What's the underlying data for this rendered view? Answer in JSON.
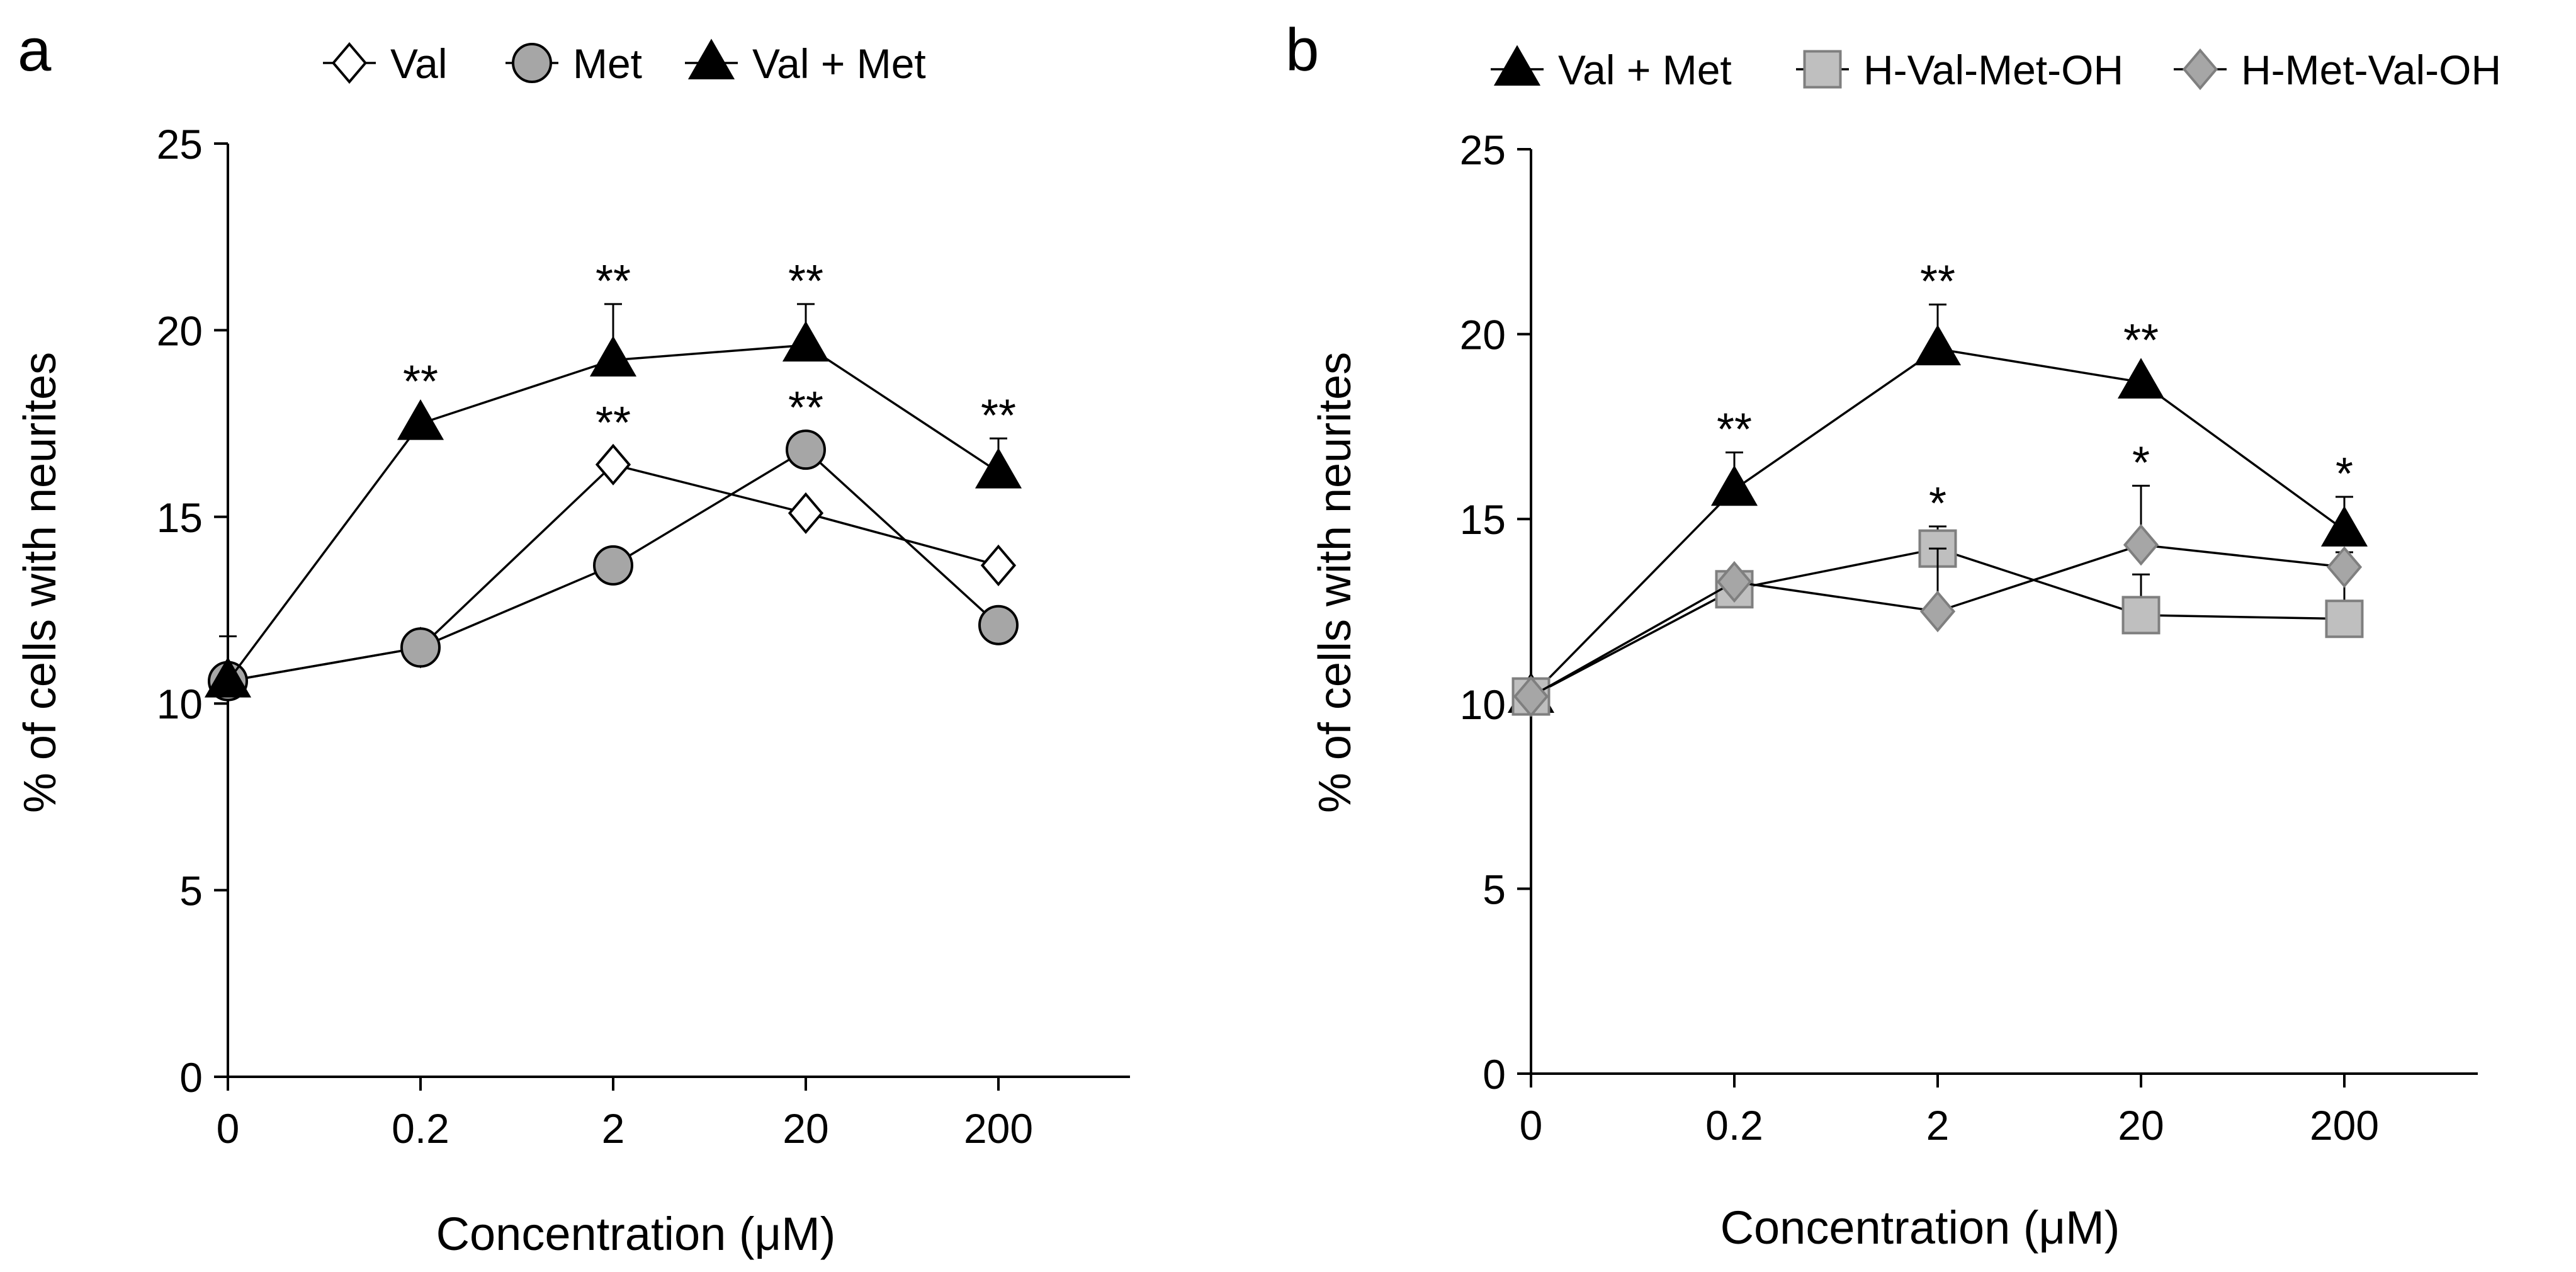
{
  "chart_data": [
    {
      "panel_label": "a",
      "type": "line",
      "title": "",
      "xlabel": "Concentration (μM)",
      "ylabel": "% of cells with neurites",
      "categories": [
        "0",
        "0.2",
        "2",
        "20",
        "200"
      ],
      "ylim": [
        0,
        25
      ],
      "yticks": [
        "0",
        "5",
        "10",
        "15",
        "20",
        "25"
      ],
      "grid": false,
      "legend_position": "top",
      "series": [
        {
          "name": "Val",
          "marker": "diamond",
          "fill": "#ffffff",
          "stroke": "#000000",
          "values": [
            10.6,
            11.5,
            16.4,
            15.1,
            13.7
          ],
          "errors": [
            0,
            0,
            0,
            0,
            0
          ],
          "significance": [
            "",
            "",
            "**",
            "",
            ""
          ]
        },
        {
          "name": "Met",
          "marker": "circle",
          "fill": "#a6a6a6",
          "stroke": "#000000",
          "values": [
            10.6,
            11.5,
            13.7,
            16.8,
            12.1
          ],
          "errors": [
            0,
            0,
            0,
            0,
            0
          ],
          "significance": [
            "",
            "",
            "",
            "**",
            ""
          ]
        },
        {
          "name": "Val + Met",
          "marker": "triangle",
          "fill": "#000000",
          "stroke": "#000000",
          "values": [
            10.6,
            17.5,
            19.2,
            19.6,
            16.2
          ],
          "errors": [
            1.2,
            0,
            1.5,
            1.1,
            0.9
          ],
          "significance": [
            "",
            "**",
            "**",
            "**",
            "**"
          ]
        }
      ]
    },
    {
      "panel_label": "b",
      "type": "line",
      "title": "",
      "xlabel": "Concentration (μM)",
      "ylabel": "% of cells with neurites",
      "categories": [
        "0",
        "0.2",
        "2",
        "20",
        "200"
      ],
      "ylim": [
        0,
        25
      ],
      "yticks": [
        "0",
        "5",
        "10",
        "15",
        "20",
        "25"
      ],
      "grid": false,
      "legend_position": "top",
      "series": [
        {
          "name": "Val + Met",
          "marker": "triangle",
          "fill": "#000000",
          "stroke": "#000000",
          "values": [
            10.2,
            15.8,
            19.6,
            18.7,
            14.7
          ],
          "errors": [
            0,
            1.0,
            1.2,
            0,
            0.9
          ],
          "significance": [
            "",
            "**",
            "**",
            "**",
            "*"
          ]
        },
        {
          "name": "H-Val-Met-OH",
          "marker": "square",
          "fill": "#bfbfbf",
          "stroke": "#7f7f7f",
          "values": [
            10.2,
            13.1,
            14.2,
            12.4,
            12.3
          ],
          "errors": [
            0,
            0,
            0.6,
            1.1,
            1.8
          ],
          "significance": [
            "",
            "",
            "*",
            "",
            ""
          ]
        },
        {
          "name": "H-Met-Val-OH",
          "marker": "diamond",
          "fill": "#a6a6a6",
          "stroke": "#7f7f7f",
          "values": [
            10.2,
            13.3,
            12.5,
            14.3,
            13.7
          ],
          "errors": [
            0,
            0,
            1.7,
            1.6,
            0
          ],
          "significance": [
            "",
            "",
            "",
            "*",
            ""
          ]
        }
      ]
    }
  ]
}
